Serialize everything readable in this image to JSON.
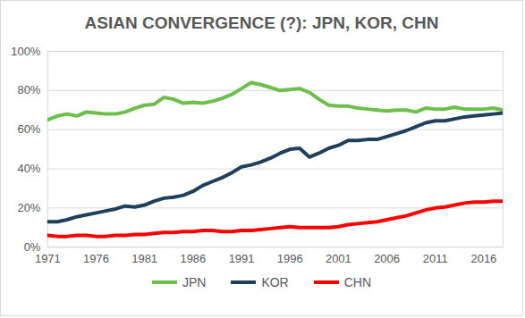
{
  "chart_data": {
    "type": "line",
    "title": "ASIAN CONVERGENCE (?): JPN, KOR, CHN",
    "x": [
      1971,
      1972,
      1973,
      1974,
      1975,
      1976,
      1977,
      1978,
      1979,
      1980,
      1981,
      1982,
      1983,
      1984,
      1985,
      1986,
      1987,
      1988,
      1989,
      1990,
      1991,
      1992,
      1993,
      1994,
      1995,
      1996,
      1997,
      1998,
      1999,
      2000,
      2001,
      2002,
      2003,
      2004,
      2005,
      2006,
      2007,
      2008,
      2009,
      2010,
      2011,
      2012,
      2013,
      2014,
      2015,
      2016,
      2017,
      2018
    ],
    "series": [
      {
        "name": "JPN",
        "color": "#6dbf4b",
        "values": [
          65,
          67,
          68,
          67,
          69,
          68.5,
          68,
          68,
          69,
          71,
          72.5,
          73,
          76.5,
          75.5,
          73.5,
          74,
          73.5,
          74.5,
          76,
          78,
          81,
          84,
          83,
          81.5,
          80,
          80.5,
          81,
          79,
          75.5,
          72.5,
          72,
          72,
          71,
          70.5,
          70,
          69.5,
          70,
          70,
          69,
          71,
          70.5,
          70.5,
          71.5,
          70.5,
          70.5,
          70.5,
          71,
          70
        ]
      },
      {
        "name": "KOR",
        "color": "#1f3f5b",
        "values": [
          13,
          13,
          14,
          15.5,
          16.5,
          17.5,
          18.5,
          19.5,
          21,
          20.5,
          21.5,
          23.5,
          25,
          25.5,
          26.5,
          28.5,
          31.5,
          33.5,
          35.5,
          38,
          41,
          42,
          43.5,
          45.5,
          48,
          50,
          50.5,
          46,
          48,
          50.5,
          52,
          54.5,
          54.5,
          55,
          55,
          56.5,
          58,
          59.5,
          61.5,
          63.5,
          64.5,
          64.5,
          65.5,
          66.5,
          67,
          67.5,
          68,
          68.5
        ]
      },
      {
        "name": "CHN",
        "color": "#ff0000",
        "values": [
          6,
          5.5,
          5.5,
          6,
          6,
          5.5,
          5.5,
          6,
          6,
          6.5,
          6.5,
          7,
          7.5,
          7.5,
          8,
          8,
          8.5,
          8.5,
          8,
          8,
          8.5,
          8.5,
          9,
          9.5,
          10,
          10.5,
          10,
          10,
          10,
          10,
          10.5,
          11.5,
          12,
          12.5,
          13,
          14,
          15,
          16,
          17.5,
          19,
          20,
          20.5,
          21.5,
          22.5,
          23,
          23,
          23.5,
          23.5
        ]
      }
    ],
    "xlim": [
      1971,
      2018
    ],
    "xticks": [
      1971,
      1976,
      1981,
      1986,
      1991,
      1996,
      2001,
      2006,
      2011,
      2016
    ],
    "ylim": [
      0,
      100
    ],
    "yticks": [
      {
        "value": 0,
        "label": "0%"
      },
      {
        "value": 20,
        "label": "20%"
      },
      {
        "value": 40,
        "label": "40%"
      },
      {
        "value": 60,
        "label": "60%"
      },
      {
        "value": 80,
        "label": "80%"
      },
      {
        "value": 100,
        "label": "100%"
      }
    ],
    "grid": true,
    "legend": "bottom"
  }
}
